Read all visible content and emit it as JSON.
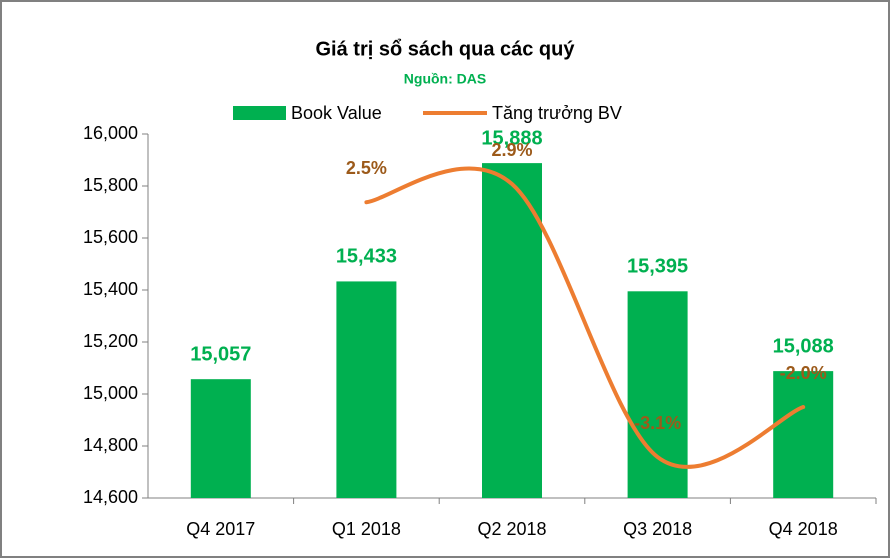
{
  "chart_data": {
    "type": "bar-line",
    "title": "Giá trị sổ sách qua các quý",
    "subtitle": "Nguồn: DAS",
    "categories": [
      "Q4 2017",
      "Q1 2018",
      "Q2 2018",
      "Q3 2018",
      "Q4 2018"
    ],
    "series": [
      {
        "name": "Book Value",
        "type": "bar",
        "color": "#00b050",
        "values": [
          15057,
          15433,
          15888,
          15395,
          15088
        ],
        "value_labels": [
          "15,057",
          "15,433",
          "15,888",
          "15,395",
          "15,088"
        ]
      },
      {
        "name": "Tăng trưởng BV",
        "type": "line",
        "color": "#ed7d31",
        "axis": "y2",
        "smooth": true,
        "values": [
          null,
          2.5,
          2.9,
          -3.1,
          -2.0
        ],
        "value_labels": [
          null,
          "2.5%",
          "2.9%",
          "-3.1%",
          "-2.0%"
        ]
      }
    ],
    "ylim": [
      14600,
      16000
    ],
    "yticks": [
      {
        "value": 14600,
        "label": "14,600"
      },
      {
        "value": 14800,
        "label": "14,800"
      },
      {
        "value": 15000,
        "label": "15,000"
      },
      {
        "value": 15200,
        "label": "15,200"
      },
      {
        "value": 15400,
        "label": "15,400"
      },
      {
        "value": 15600,
        "label": "15,600"
      },
      {
        "value": 15800,
        "label": "15,800"
      },
      {
        "value": 16000,
        "label": "16,000"
      }
    ],
    "y2lim": [
      -4,
      4
    ],
    "legend": "top",
    "grid": false
  }
}
